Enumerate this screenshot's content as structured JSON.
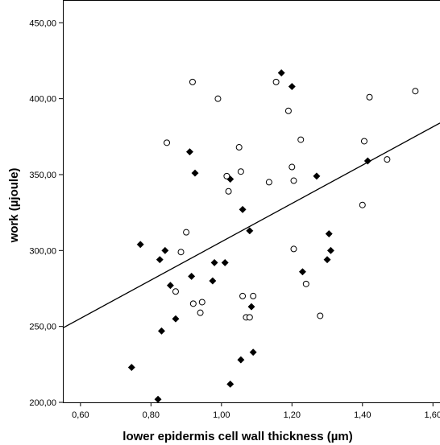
{
  "chart_data": {
    "type": "scatter",
    "xlabel": "lower epidermis cell wall thickness (µm)",
    "ylabel": "work (µjoule)",
    "xlim": [
      0.55,
      1.62
    ],
    "ylim": [
      200,
      465
    ],
    "x_ticks": [
      0.6,
      0.8,
      1.0,
      1.2,
      1.4,
      1.6
    ],
    "x_tick_labels": [
      "0,60",
      "0,80",
      "1,00",
      "1,20",
      "1,40",
      "1,60"
    ],
    "y_ticks": [
      200,
      250,
      300,
      350,
      400,
      450
    ],
    "y_tick_labels": [
      "200,00",
      "250,00",
      "300,00",
      "350,00",
      "400,00",
      "450,00"
    ],
    "grid": false,
    "series": [
      {
        "marker": "filled-diamond",
        "color": "#000000",
        "points": [
          [
            0.745,
            223
          ],
          [
            0.77,
            304
          ],
          [
            0.82,
            202
          ],
          [
            0.825,
            294
          ],
          [
            0.83,
            247
          ],
          [
            0.84,
            300
          ],
          [
            0.855,
            277
          ],
          [
            0.87,
            255
          ],
          [
            0.91,
            365
          ],
          [
            0.915,
            283
          ],
          [
            0.925,
            351
          ],
          [
            0.975,
            280
          ],
          [
            0.98,
            292
          ],
          [
            1.01,
            292
          ],
          [
            1.025,
            347
          ],
          [
            1.025,
            212
          ],
          [
            1.055,
            228
          ],
          [
            1.06,
            327
          ],
          [
            1.08,
            313
          ],
          [
            1.085,
            263
          ],
          [
            1.09,
            233
          ],
          [
            1.17,
            417
          ],
          [
            1.2,
            408
          ],
          [
            1.23,
            286
          ],
          [
            1.27,
            349
          ],
          [
            1.3,
            294
          ],
          [
            1.305,
            311
          ],
          [
            1.31,
            300
          ],
          [
            1.415,
            359
          ]
        ]
      },
      {
        "marker": "open-circle",
        "color": "#000000",
        "points": [
          [
            0.845,
            371
          ],
          [
            0.87,
            273
          ],
          [
            0.885,
            299
          ],
          [
            0.9,
            312
          ],
          [
            0.918,
            411
          ],
          [
            0.92,
            265
          ],
          [
            0.94,
            259
          ],
          [
            0.945,
            266
          ],
          [
            0.99,
            400
          ],
          [
            1.015,
            349
          ],
          [
            1.02,
            339
          ],
          [
            1.05,
            368
          ],
          [
            1.055,
            352
          ],
          [
            1.06,
            270
          ],
          [
            1.07,
            256
          ],
          [
            1.08,
            256
          ],
          [
            1.09,
            270
          ],
          [
            1.135,
            345
          ],
          [
            1.155,
            411
          ],
          [
            1.19,
            392
          ],
          [
            1.2,
            355
          ],
          [
            1.205,
            301
          ],
          [
            1.205,
            346
          ],
          [
            1.225,
            373
          ],
          [
            1.24,
            278
          ],
          [
            1.28,
            257
          ],
          [
            1.4,
            330
          ],
          [
            1.405,
            372
          ],
          [
            1.42,
            401
          ],
          [
            1.47,
            360
          ],
          [
            1.55,
            405
          ]
        ]
      }
    ],
    "fit_line": {
      "x": [
        0.55,
        1.62
      ],
      "y": [
        249,
        384
      ]
    }
  }
}
